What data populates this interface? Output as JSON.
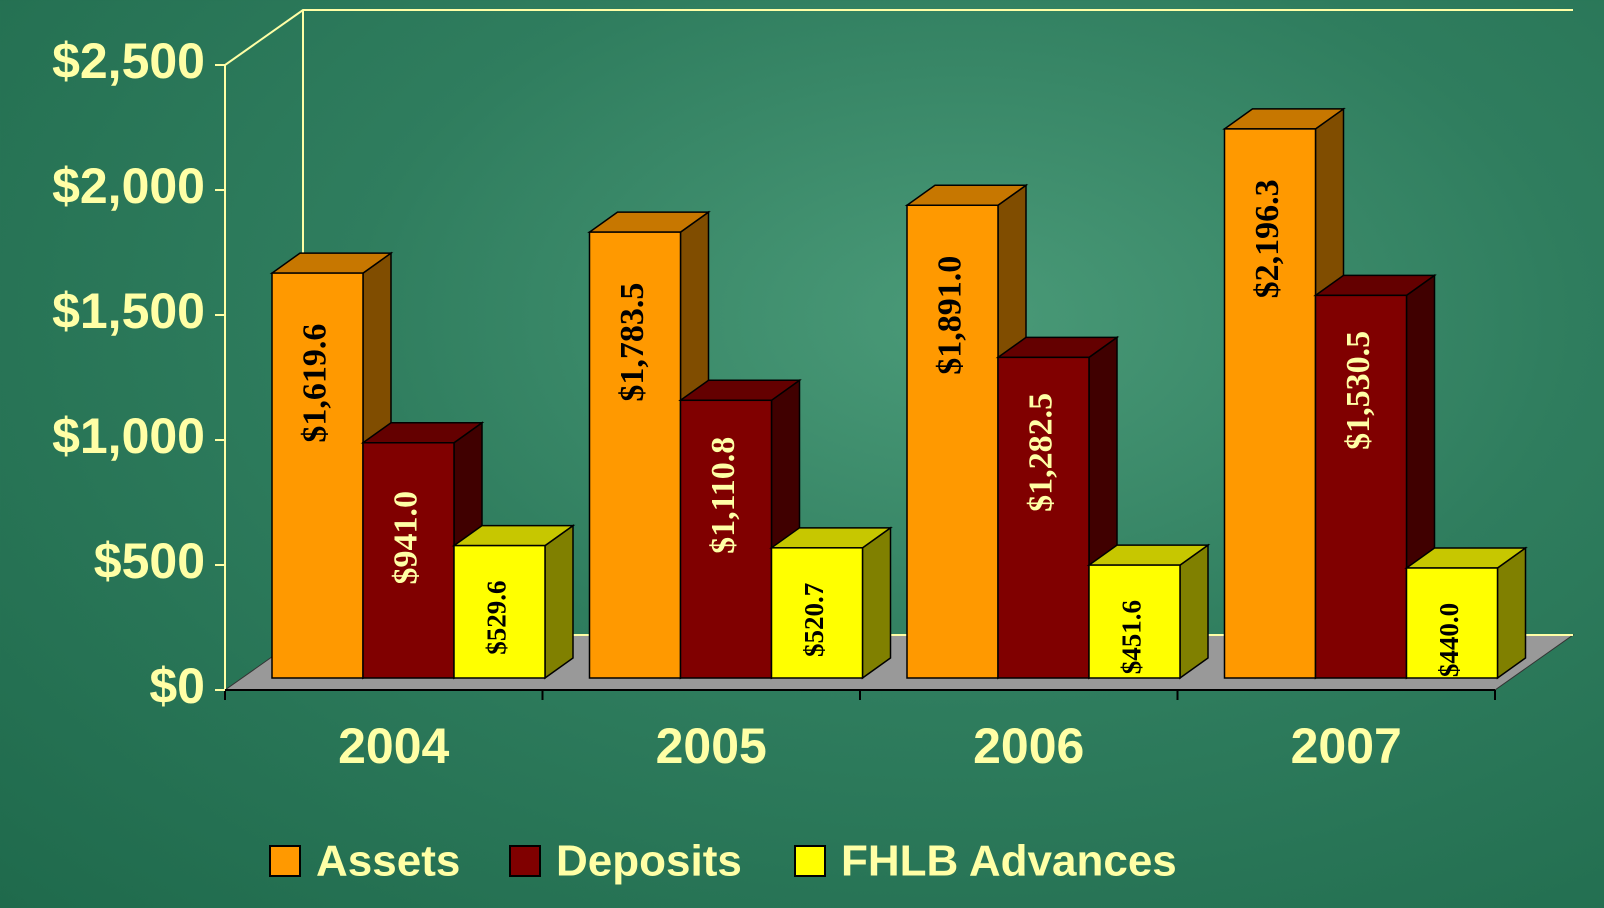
{
  "chart_data": {
    "type": "bar3d",
    "categories": [
      "2004",
      "2005",
      "2006",
      "2007"
    ],
    "series": [
      {
        "name": "Assets",
        "color": "#ff9900",
        "values": [
          1619.6,
          1783.5,
          1891.0,
          2196.3
        ],
        "value_labels": [
          "$1,619.6",
          "$1,783.5",
          "$1,891.0",
          "$2,196.3"
        ]
      },
      {
        "name": "Deposits",
        "color": "#800000",
        "values": [
          941.0,
          1110.8,
          1282.5,
          1530.5
        ],
        "value_labels": [
          "$941.0",
          "$1,110.8",
          "$1,282.5",
          "$1,530.5"
        ]
      },
      {
        "name": "FHLB Advances",
        "color": "#ffff00",
        "values": [
          529.6,
          520.7,
          451.6,
          440.0
        ],
        "value_labels": [
          "$529.6",
          "$520.7",
          "$451.6",
          "$440.0"
        ]
      }
    ],
    "ylim": [
      0,
      2500
    ],
    "yticks": [
      {
        "value": 0,
        "label": "$0"
      },
      {
        "value": 500,
        "label": "$500"
      },
      {
        "value": 1000,
        "label": "$1,000"
      },
      {
        "value": 1500,
        "label": "$1,500"
      },
      {
        "value": 2000,
        "label": "$2,000"
      },
      {
        "value": 2500,
        "label": "$2,500"
      }
    ],
    "legend": "bottom"
  }
}
